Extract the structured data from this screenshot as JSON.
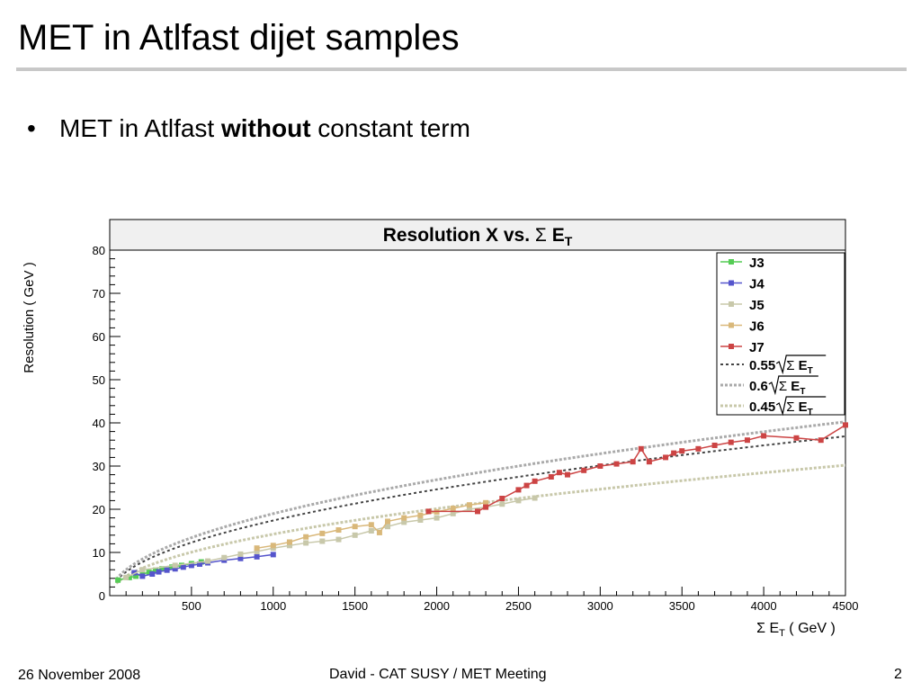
{
  "slide": {
    "title": "MET in Atlfast dijet samples",
    "bullet_prefix": "MET in Atlfast ",
    "bullet_bold": "without",
    "bullet_suffix": " constant term"
  },
  "footer": {
    "date": "26 November 2008",
    "center": "David - CAT SUSY / MET Meeting",
    "page": "2"
  },
  "colors": {
    "J3": "#55cc55",
    "J4": "#5555cc",
    "J5": "#c8c8aa",
    "J6": "#d9b87a",
    "J7": "#cc4444",
    "fit_055": "#444444",
    "fit_06": "#aaaaaa",
    "fit_045": "#c8c8aa"
  },
  "chart_data": {
    "type": "scatter",
    "title_main": "Resolution X vs. ",
    "title_sigma": "Σ",
    "title_e": " E",
    "title_sub": "T",
    "ylabel": "Resolution ( GeV )",
    "xlabel_pre": "Σ E",
    "xlabel_sub": "T",
    "xlabel_post": " ( GeV )",
    "xlim": [
      0,
      4500
    ],
    "ylim": [
      0,
      80
    ],
    "xticks": [
      "500",
      "1000",
      "1500",
      "2000",
      "2500",
      "3000",
      "3500",
      "4000",
      "4500"
    ],
    "yticks": [
      "0",
      "10",
      "20",
      "30",
      "40",
      "50",
      "60",
      "70",
      "80"
    ],
    "legend_position": "top-right",
    "series": [
      {
        "name": "J3",
        "x": [
          50,
          120,
          160,
          200,
          240,
          280,
          320,
          380,
          440,
          500,
          560
        ],
        "y": [
          3.6,
          4.2,
          4.5,
          5.0,
          5.4,
          5.9,
          6.2,
          6.6,
          7.0,
          7.4,
          7.8
        ]
      },
      {
        "name": "J4",
        "x": [
          150,
          200,
          260,
          300,
          350,
          400,
          450,
          500,
          550,
          600,
          700,
          800,
          900,
          1000
        ],
        "y": [
          5.3,
          4.5,
          5.0,
          5.5,
          5.9,
          6.2,
          6.6,
          7.0,
          7.3,
          7.6,
          8.2,
          8.6,
          9.0,
          9.5
        ]
      },
      {
        "name": "J5",
        "x": [
          100,
          200,
          400,
          600,
          700,
          800,
          900,
          1000,
          1100,
          1200,
          1300,
          1400,
          1500,
          1600,
          1700,
          1800,
          1900,
          2000,
          2100,
          2200,
          2300,
          2400,
          2500,
          2600
        ],
        "y": [
          4.2,
          6.0,
          7.0,
          8.0,
          8.8,
          9.6,
          10.2,
          11.0,
          11.6,
          12.2,
          12.6,
          13.0,
          14.0,
          15.0,
          16.0,
          17.0,
          17.5,
          18.0,
          19.0,
          20.0,
          20.5,
          21.2,
          22.0,
          22.6
        ]
      },
      {
        "name": "J6",
        "x": [
          900,
          1000,
          1100,
          1200,
          1300,
          1400,
          1500,
          1600,
          1650,
          1700,
          1800,
          1900,
          2000,
          2100,
          2200,
          2300
        ],
        "y": [
          11.0,
          11.6,
          12.4,
          13.6,
          14.4,
          15.2,
          16.0,
          16.4,
          14.6,
          17.2,
          18.0,
          18.6,
          19.4,
          20.2,
          21.0,
          21.5
        ]
      },
      {
        "name": "J7",
        "x": [
          1950,
          2250,
          2300,
          2400,
          2500,
          2550,
          2600,
          2700,
          2750,
          2800,
          2900,
          3000,
          3100,
          3200,
          3250,
          3300,
          3400,
          3450,
          3500,
          3600,
          3700,
          3800,
          3900,
          4000,
          4200,
          4350,
          4500
        ],
        "y": [
          19.5,
          19.5,
          20.5,
          22.5,
          24.5,
          25.5,
          26.5,
          27.5,
          28.5,
          28.0,
          29.0,
          30.0,
          30.5,
          31.0,
          34.0,
          31.0,
          32.0,
          33.0,
          33.5,
          34.0,
          34.8,
          35.5,
          36.0,
          37.0,
          36.5,
          36.0,
          39.5
        ]
      }
    ],
    "fits": [
      {
        "legend_coef": "0.55",
        "legend_sigma": "Σ",
        "legend_e": " E",
        "legend_sub": "T",
        "coef": 0.55
      },
      {
        "legend_coef": "0.6",
        "legend_sigma": "Σ",
        "legend_e": " E",
        "legend_sub": "T",
        "coef": 0.6
      },
      {
        "legend_coef": "0.45",
        "legend_sigma": "Σ",
        "legend_e": " E",
        "legend_sub": "T",
        "coef": 0.45
      }
    ]
  }
}
